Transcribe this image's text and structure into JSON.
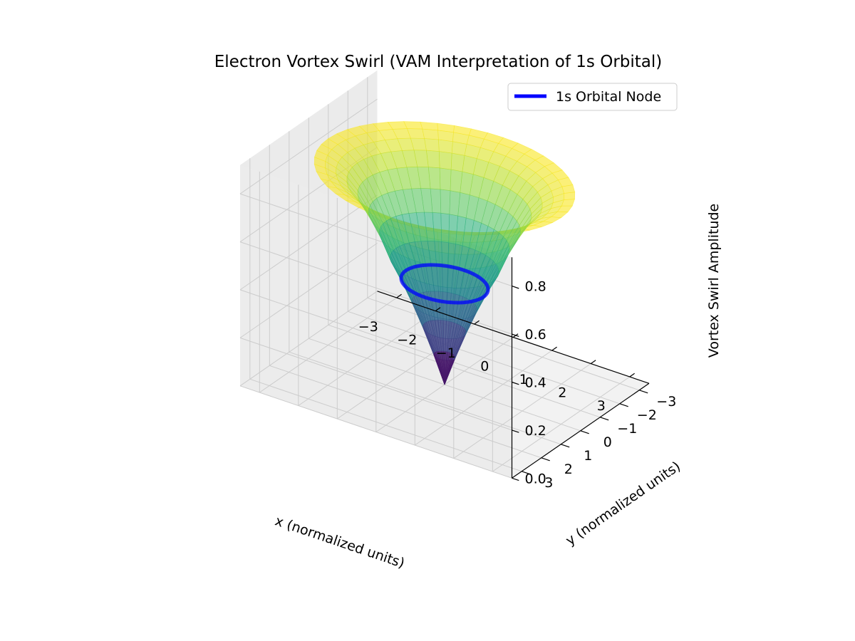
{
  "chart_data": {
    "type": "surface3d",
    "title": "Electron Vortex Swirl (VAM Interpretation of 1s Orbital)",
    "xlabel": "x (normalized units)",
    "ylabel": "y (normalized units)",
    "zlabel": "Vortex Swirl Amplitude",
    "x_ticks": [
      "−3",
      "−2",
      "−1",
      "0",
      "1",
      "2",
      "3"
    ],
    "y_ticks": [
      "−3",
      "−2",
      "−1",
      "0",
      "1",
      "2",
      "3"
    ],
    "z_ticks": [
      "0.0",
      "0.2",
      "0.4",
      "0.6",
      "0.8"
    ],
    "xlim": [
      -3.5,
      3.5
    ],
    "ylim": [
      -3.5,
      3.5
    ],
    "zlim": [
      0,
      0.92
    ],
    "grid": true,
    "legend_position": "top-right",
    "colormap": "viridis",
    "surface": {
      "r": [
        0.0,
        0.25,
        0.5,
        0.75,
        1.0,
        1.25,
        1.5,
        1.75,
        2.0,
        2.25,
        2.5,
        2.75,
        3.0
      ],
      "z": [
        0.0,
        0.12,
        0.23,
        0.33,
        0.42,
        0.5,
        0.6,
        0.68,
        0.75,
        0.8,
        0.83,
        0.85,
        0.86
      ]
    },
    "node_ring": {
      "name": "1s Orbital Node",
      "radius": 1.0,
      "z": 0.42,
      "color": "#0000ff"
    },
    "colors": {
      "background": "#ffffff",
      "pane": "#f2f2f2",
      "grid": "#cccccc"
    }
  }
}
